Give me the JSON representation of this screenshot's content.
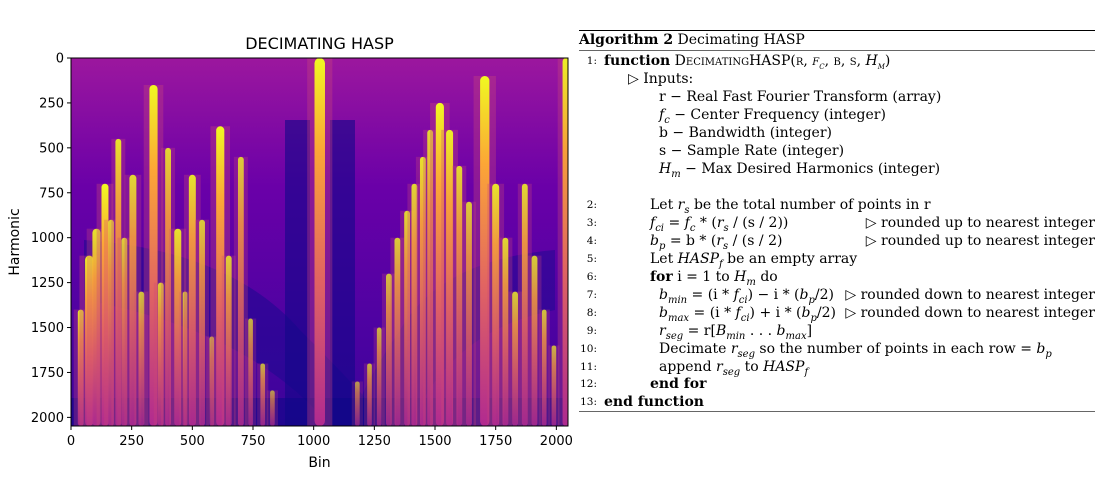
{
  "figure": {
    "chart_data": {
      "type": "heatmap",
      "title": "DECIMATING HASP",
      "xlabel": "Bin",
      "ylabel": "Harmonic",
      "xlim": [
        0,
        2048
      ],
      "ylim": [
        2048,
        0
      ],
      "x_ticks": [
        "0",
        "250",
        "500",
        "750",
        "1000",
        "1250",
        "1500",
        "1750",
        "2000"
      ],
      "y_ticks": [
        "0",
        "250",
        "500",
        "750",
        "1000",
        "1250",
        "1500",
        "1750",
        "2000"
      ],
      "colormap": "plasma",
      "colormap_stops": [
        "#0d0887",
        "#6a00a8",
        "#b12a90",
        "#e16462",
        "#fca636",
        "#f0f921"
      ],
      "bright_columns": [
        {
          "bin": 40,
          "top": 1400,
          "w": 10,
          "a": 0.9
        },
        {
          "bin": 75,
          "top": 1100,
          "w": 14,
          "a": 1.0
        },
        {
          "bin": 105,
          "top": 950,
          "w": 14,
          "a": 0.9
        },
        {
          "bin": 140,
          "top": 700,
          "w": 12,
          "a": 1.0
        },
        {
          "bin": 165,
          "top": 900,
          "w": 10,
          "a": 0.8
        },
        {
          "bin": 195,
          "top": 450,
          "w": 10,
          "a": 0.9
        },
        {
          "bin": 220,
          "top": 1000,
          "w": 10,
          "a": 0.8
        },
        {
          "bin": 255,
          "top": 650,
          "w": 12,
          "a": 0.85
        },
        {
          "bin": 290,
          "top": 1300,
          "w": 10,
          "a": 0.75
        },
        {
          "bin": 340,
          "top": 150,
          "w": 14,
          "a": 1.0
        },
        {
          "bin": 370,
          "top": 1250,
          "w": 10,
          "a": 0.8
        },
        {
          "bin": 400,
          "top": 500,
          "w": 10,
          "a": 0.85
        },
        {
          "bin": 440,
          "top": 950,
          "w": 12,
          "a": 0.9
        },
        {
          "bin": 470,
          "top": 1300,
          "w": 8,
          "a": 0.75
        },
        {
          "bin": 500,
          "top": 650,
          "w": 12,
          "a": 0.9
        },
        {
          "bin": 540,
          "top": 900,
          "w": 10,
          "a": 0.8
        },
        {
          "bin": 580,
          "top": 1550,
          "w": 8,
          "a": 0.7
        },
        {
          "bin": 615,
          "top": 380,
          "w": 14,
          "a": 1.0
        },
        {
          "bin": 650,
          "top": 1100,
          "w": 10,
          "a": 0.8
        },
        {
          "bin": 700,
          "top": 550,
          "w": 10,
          "a": 0.8
        },
        {
          "bin": 740,
          "top": 1450,
          "w": 8,
          "a": 0.7
        },
        {
          "bin": 790,
          "top": 1700,
          "w": 8,
          "a": 0.7
        },
        {
          "bin": 830,
          "top": 1850,
          "w": 8,
          "a": 0.6
        },
        {
          "bin": 1025,
          "top": 0,
          "w": 18,
          "a": 1.0
        },
        {
          "bin": 1180,
          "top": 1800,
          "w": 8,
          "a": 0.6
        },
        {
          "bin": 1230,
          "top": 1700,
          "w": 8,
          "a": 0.7
        },
        {
          "bin": 1270,
          "top": 1500,
          "w": 8,
          "a": 0.7
        },
        {
          "bin": 1310,
          "top": 1200,
          "w": 10,
          "a": 0.75
        },
        {
          "bin": 1345,
          "top": 1000,
          "w": 10,
          "a": 0.8
        },
        {
          "bin": 1385,
          "top": 850,
          "w": 10,
          "a": 0.85
        },
        {
          "bin": 1415,
          "top": 700,
          "w": 10,
          "a": 0.85
        },
        {
          "bin": 1450,
          "top": 550,
          "w": 10,
          "a": 0.9
        },
        {
          "bin": 1480,
          "top": 400,
          "w": 10,
          "a": 0.85
        },
        {
          "bin": 1520,
          "top": 250,
          "w": 14,
          "a": 1.0
        },
        {
          "bin": 1560,
          "top": 400,
          "w": 12,
          "a": 0.95
        },
        {
          "bin": 1600,
          "top": 600,
          "w": 10,
          "a": 0.85
        },
        {
          "bin": 1640,
          "top": 800,
          "w": 10,
          "a": 0.8
        },
        {
          "bin": 1705,
          "top": 100,
          "w": 16,
          "a": 1.0
        },
        {
          "bin": 1750,
          "top": 700,
          "w": 12,
          "a": 0.9
        },
        {
          "bin": 1790,
          "top": 1000,
          "w": 10,
          "a": 0.85
        },
        {
          "bin": 1830,
          "top": 1300,
          "w": 10,
          "a": 0.8
        },
        {
          "bin": 1870,
          "top": 700,
          "w": 10,
          "a": 0.85
        },
        {
          "bin": 1910,
          "top": 1100,
          "w": 10,
          "a": 0.8
        },
        {
          "bin": 1950,
          "top": 1400,
          "w": 8,
          "a": 0.75
        },
        {
          "bin": 1990,
          "top": 1600,
          "w": 8,
          "a": 0.7
        },
        {
          "bin": 2040,
          "top": 0,
          "w": 12,
          "a": 0.95
        }
      ]
    }
  },
  "algorithm": {
    "caption_label": "Algorithm 2",
    "caption_title": "Decimating HASP",
    "lines": [
      {
        "num": "1:",
        "indent": 0,
        "kw": "function",
        "text": "DecimatingHASP(r, f_c, b, s, H_m)",
        "comment": ""
      },
      {
        "num": "",
        "indent": 1,
        "kw": "",
        "text": "▷ Inputs:",
        "comment": ""
      },
      {
        "num": "",
        "indent": 3,
        "kw": "",
        "text": "r − Real Fast Fourier Transform (array)",
        "comment": ""
      },
      {
        "num": "",
        "indent": 3,
        "kw": "",
        "text": "f_c − Center Frequency (integer)",
        "comment": ""
      },
      {
        "num": "",
        "indent": 3,
        "kw": "",
        "text": "b − Bandwidth (integer)",
        "comment": ""
      },
      {
        "num": "",
        "indent": 3,
        "kw": "",
        "text": "s − Sample Rate (integer)",
        "comment": ""
      },
      {
        "num": "",
        "indent": 3,
        "kw": "",
        "text": "H_m − Max Desired Harmonics (integer)",
        "comment": ""
      },
      {
        "num": "2:",
        "indent": 2,
        "kw": "",
        "text": "Let r_s be the total number of points in r",
        "comment": ""
      },
      {
        "num": "3:",
        "indent": 2,
        "kw": "",
        "text": "f_ci = f_c * (r_s / (s / 2))",
        "comment": "▷ rounded up to nearest integer"
      },
      {
        "num": "4:",
        "indent": 2,
        "kw": "",
        "text": "b_p = b * (r_s / (s / 2)",
        "comment": "▷ rounded up to nearest integer"
      },
      {
        "num": "5:",
        "indent": 2,
        "kw": "",
        "text": "Let HASP_f be an empty array",
        "comment": ""
      },
      {
        "num": "6:",
        "indent": 2,
        "kw": "for",
        "text": "i = 1 to H_m do",
        "comment": ""
      },
      {
        "num": "7:",
        "indent": 3,
        "kw": "",
        "text": "b_min = (i * f_ci) − i * (b_p/2)",
        "comment": "▷ rounded down to nearest integer"
      },
      {
        "num": "8:",
        "indent": 3,
        "kw": "",
        "text": "b_max = (i * f_ci) + i * (b_p/2)",
        "comment": "▷ rounded down to nearest integer"
      },
      {
        "num": "9:",
        "indent": 3,
        "kw": "",
        "text": "r_seg = r[B_min . . . b_max]",
        "comment": ""
      },
      {
        "num": "10:",
        "indent": 3,
        "kw": "",
        "text": "Decimate r_seg so the number of points in each row = b_p",
        "comment": ""
      },
      {
        "num": "11:",
        "indent": 3,
        "kw": "",
        "text": "append r_seg to HASP_f",
        "comment": ""
      },
      {
        "num": "12:",
        "indent": 2,
        "kw": "end for",
        "text": "",
        "comment": ""
      },
      {
        "num": "13:",
        "indent": 0,
        "kw": "end function",
        "text": "",
        "comment": ""
      }
    ]
  }
}
